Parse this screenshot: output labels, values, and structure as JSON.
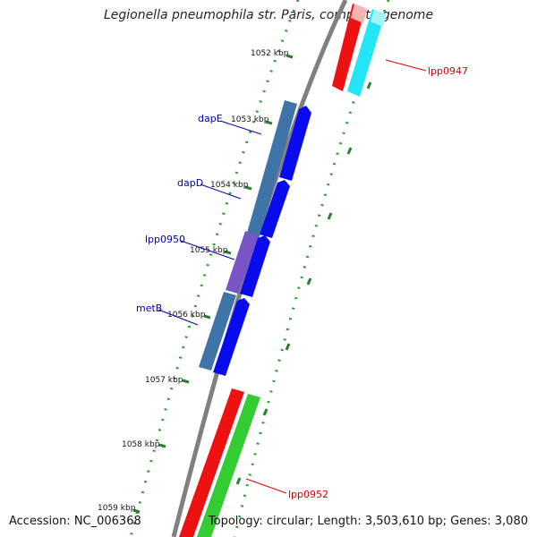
{
  "title": "Legionella pneumophila str. Paris, complete genome",
  "footer": {
    "accession": "Accession: NC_006368",
    "summary": "Topology: circular; Length: 3,503,610 bp; Genes: 3,080"
  },
  "colors": {
    "backbone": "#808080",
    "tick_major": "#2e7d32",
    "tick_minor": "#2e9a2e",
    "label_blue": "#0000aa",
    "label_red": "#dd0000",
    "gene_red": "#ee1111",
    "gene_cyan": "#22e5f5",
    "gene_green": "#33cc33",
    "gene_steel": "#3f74a8",
    "gene_blue": "#0a0aee",
    "gene_purple": "#7a55c8"
  },
  "scale_labels": [
    "1052 kbp",
    "1053 kbp",
    "1054 kbp",
    "1055 kbp",
    "1056 kbp",
    "1057 kbp",
    "1058 kbp",
    "1059 kbp"
  ],
  "gene_labels": {
    "dapE": "dapE",
    "dapD": "dapD",
    "lpp0950": "lpp0950",
    "metB": "metB",
    "lpp0947": "lpp0947",
    "lpp0952": "lpp0952"
  }
}
